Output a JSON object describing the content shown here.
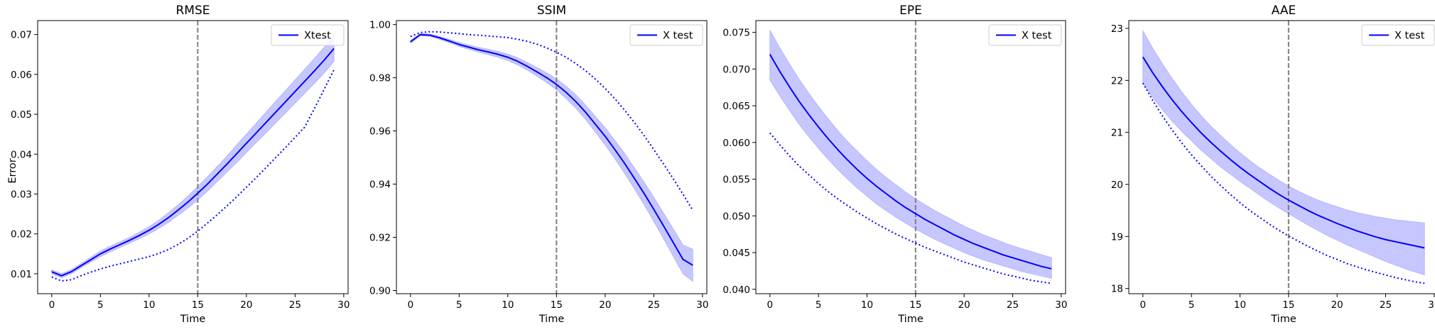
{
  "figure": {
    "ylabel": "Error"
  },
  "chart_data": [
    {
      "type": "line",
      "title": "RMSE",
      "xlabel": "Time",
      "ylabel": "Error",
      "xlim": [
        -1.45,
        30.45
      ],
      "ylim": [
        0.005,
        0.0735
      ],
      "xticks": [
        0,
        5,
        10,
        15,
        20,
        25,
        30
      ],
      "yticks": [
        0.01,
        0.02,
        0.03,
        0.04,
        0.05,
        0.06,
        0.07
      ],
      "tick_decimals": 2,
      "grid": false,
      "legend_position": "top-right",
      "legend_label": "Xtest",
      "vline_x": 15,
      "color": "#0000ff",
      "band_color": "#b4b4ff",
      "x": [
        0,
        1,
        2,
        3,
        4,
        5,
        6,
        7,
        8,
        9,
        10,
        11,
        12,
        13,
        14,
        15,
        16,
        17,
        18,
        19,
        20,
        21,
        22,
        23,
        24,
        25,
        26,
        27,
        28,
        29
      ],
      "series": [
        {
          "name": "Xtest",
          "style": "solid",
          "values": [
            0.0105,
            0.0095,
            0.0105,
            0.012,
            0.0135,
            0.015,
            0.0162,
            0.0173,
            0.0184,
            0.0196,
            0.0209,
            0.0224,
            0.0241,
            0.026,
            0.028,
            0.0302,
            0.0325,
            0.035,
            0.0375,
            0.0401,
            0.0427,
            0.0453,
            0.0479,
            0.0505,
            0.0531,
            0.0557,
            0.0583,
            0.0609,
            0.0636,
            0.0665
          ]
        },
        {
          "style": "dotted",
          "values": [
            0.0092,
            0.0082,
            0.0085,
            0.0095,
            0.0104,
            0.0112,
            0.0119,
            0.0125,
            0.0131,
            0.0137,
            0.0143,
            0.0151,
            0.0161,
            0.0174,
            0.0189,
            0.0207,
            0.0227,
            0.0248,
            0.027,
            0.0293,
            0.0317,
            0.0341,
            0.0366,
            0.0391,
            0.0416,
            0.0442,
            0.0468,
            0.0515,
            0.0563,
            0.0612
          ]
        }
      ],
      "band": {
        "lower": [
          0.01,
          0.009,
          0.01,
          0.0115,
          0.0129,
          0.0143,
          0.0155,
          0.0166,
          0.0177,
          0.0188,
          0.02,
          0.0214,
          0.0229,
          0.0247,
          0.0265,
          0.0285,
          0.0307,
          0.0331,
          0.0355,
          0.0379,
          0.0404,
          0.0429,
          0.0453,
          0.0478,
          0.0503,
          0.0528,
          0.0553,
          0.0578,
          0.0604,
          0.0633
        ],
        "upper": [
          0.011,
          0.01,
          0.011,
          0.0125,
          0.0141,
          0.0157,
          0.0169,
          0.018,
          0.0191,
          0.0204,
          0.0218,
          0.0234,
          0.0253,
          0.0273,
          0.0295,
          0.0319,
          0.0343,
          0.0369,
          0.0395,
          0.0423,
          0.045,
          0.0477,
          0.0505,
          0.0532,
          0.0559,
          0.0586,
          0.0613,
          0.064,
          0.0668,
          0.0698
        ]
      }
    },
    {
      "type": "line",
      "title": "SSIM",
      "xlabel": "Time",
      "xlim": [
        -1.45,
        30.45
      ],
      "ylim": [
        0.8988,
        1.0015
      ],
      "xticks": [
        0,
        5,
        10,
        15,
        20,
        25,
        30
      ],
      "yticks": [
        0.9,
        0.92,
        0.94,
        0.96,
        0.98,
        1.0
      ],
      "tick_decimals": 2,
      "grid": false,
      "legend_position": "top-right",
      "legend_label": "X test",
      "vline_x": 15,
      "color": "#0000ff",
      "band_color": "#b4b4ff",
      "x": [
        0,
        1,
        2,
        3,
        4,
        5,
        6,
        7,
        8,
        9,
        10,
        11,
        12,
        13,
        14,
        15,
        16,
        17,
        18,
        19,
        20,
        21,
        22,
        23,
        24,
        25,
        26,
        27,
        28,
        29
      ],
      "series": [
        {
          "name": "X test",
          "style": "solid",
          "values": [
            0.9935,
            0.9962,
            0.996,
            0.995,
            0.9938,
            0.9925,
            0.9915,
            0.9905,
            0.9897,
            0.9888,
            0.9877,
            0.9862,
            0.9843,
            0.9822,
            0.98,
            0.9775,
            0.9745,
            0.971,
            0.967,
            0.9625,
            0.958,
            0.953,
            0.9478,
            0.9422,
            0.9365,
            0.9305,
            0.9243,
            0.918,
            0.9117,
            0.9095
          ]
        },
        {
          "style": "dotted",
          "values": [
            0.9955,
            0.997,
            0.9973,
            0.9972,
            0.9969,
            0.9966,
            0.9962,
            0.996,
            0.9957,
            0.9954,
            0.9951,
            0.9945,
            0.9937,
            0.9926,
            0.9912,
            0.9896,
            0.9877,
            0.9853,
            0.9826,
            0.9795,
            0.976,
            0.9721,
            0.9678,
            0.9632,
            0.9583,
            0.953,
            0.9476,
            0.942,
            0.9362,
            0.9302
          ]
        }
      ],
      "band": {
        "lower": [
          0.993,
          0.9958,
          0.9956,
          0.9945,
          0.9932,
          0.9918,
          0.9907,
          0.9896,
          0.9887,
          0.9877,
          0.9865,
          0.9849,
          0.9829,
          0.9806,
          0.9782,
          0.9755,
          0.9722,
          0.9685,
          0.9643,
          0.9596,
          0.9548,
          0.9496,
          0.9441,
          0.9383,
          0.9323,
          0.926,
          0.9195,
          0.9129,
          0.9063,
          0.9035
        ],
        "upper": [
          0.994,
          0.9966,
          0.9964,
          0.9955,
          0.9944,
          0.9932,
          0.9923,
          0.9914,
          0.9907,
          0.9899,
          0.9889,
          0.9875,
          0.9857,
          0.9838,
          0.9818,
          0.9795,
          0.9768,
          0.9735,
          0.9697,
          0.9654,
          0.9612,
          0.9564,
          0.9515,
          0.9461,
          0.9407,
          0.935,
          0.9291,
          0.9231,
          0.9171,
          0.9155
        ]
      }
    },
    {
      "type": "line",
      "title": "EPE",
      "xlabel": "Time",
      "xlim": [
        -1.45,
        30.45
      ],
      "ylim": [
        0.0394,
        0.0766
      ],
      "xticks": [
        0,
        5,
        10,
        15,
        20,
        25,
        30
      ],
      "yticks": [
        0.04,
        0.045,
        0.05,
        0.055,
        0.06,
        0.065,
        0.07,
        0.075
      ],
      "tick_decimals": 3,
      "grid": false,
      "legend_position": "top-right",
      "legend_label": "X test",
      "vline_x": 15,
      "color": "#0000ff",
      "band_color": "#b4b4ff",
      "x": [
        0,
        1,
        2,
        3,
        4,
        5,
        6,
        7,
        8,
        9,
        10,
        11,
        12,
        13,
        14,
        15,
        16,
        17,
        18,
        19,
        20,
        21,
        22,
        23,
        24,
        25,
        26,
        27,
        28,
        29
      ],
      "series": [
        {
          "name": "X test",
          "style": "solid",
          "values": [
            0.072,
            0.0697,
            0.0676,
            0.0656,
            0.0638,
            0.0621,
            0.0605,
            0.059,
            0.0576,
            0.0563,
            0.0551,
            0.054,
            0.053,
            0.052,
            0.0511,
            0.0503,
            0.0495,
            0.0488,
            0.0481,
            0.0474,
            0.0468,
            0.0462,
            0.0457,
            0.0452,
            0.0447,
            0.0443,
            0.0439,
            0.0435,
            0.0431,
            0.0428
          ]
        },
        {
          "style": "dotted",
          "values": [
            0.0613,
            0.0597,
            0.0582,
            0.0568,
            0.0556,
            0.0544,
            0.0533,
            0.0523,
            0.0514,
            0.0505,
            0.0497,
            0.0489,
            0.0482,
            0.0475,
            0.0469,
            0.0463,
            0.0457,
            0.0452,
            0.0447,
            0.0442,
            0.0437,
            0.0433,
            0.0429,
            0.0425,
            0.0421,
            0.0418,
            0.0415,
            0.0412,
            0.041,
            0.0408
          ]
        }
      ],
      "band": {
        "lower": [
          0.0685,
          0.0664,
          0.0644,
          0.0625,
          0.0608,
          0.0592,
          0.0577,
          0.0563,
          0.055,
          0.0538,
          0.0527,
          0.0516,
          0.0507,
          0.0498,
          0.049,
          0.0482,
          0.0475,
          0.0468,
          0.0462,
          0.0456,
          0.045,
          0.0445,
          0.044,
          0.0436,
          0.0432,
          0.0428,
          0.0424,
          0.0421,
          0.0418,
          0.0415
        ],
        "upper": [
          0.0753,
          0.0729,
          0.0707,
          0.0686,
          0.0667,
          0.0649,
          0.0632,
          0.0616,
          0.0601,
          0.0588,
          0.0575,
          0.0563,
          0.0552,
          0.0542,
          0.0532,
          0.0523,
          0.0515,
          0.0507,
          0.05,
          0.0493,
          0.0486,
          0.048,
          0.0474,
          0.0469,
          0.0464,
          0.0459,
          0.0455,
          0.0451,
          0.0447,
          0.0443
        ]
      }
    },
    {
      "type": "line",
      "title": "AAE",
      "xlabel": "Time",
      "xlim": [
        -1.45,
        30.45
      ],
      "ylim": [
        17.9,
        23.15
      ],
      "xticks": [
        0,
        5,
        10,
        15,
        20,
        25,
        30
      ],
      "yticks": [
        18,
        19,
        20,
        21,
        22,
        23
      ],
      "tick_decimals": 0,
      "grid": false,
      "legend_position": "top-right",
      "legend_label": "X test",
      "vline_x": 15,
      "color": "#0000ff",
      "band_color": "#b4b4ff",
      "x": [
        0,
        1,
        2,
        3,
        4,
        5,
        6,
        7,
        8,
        9,
        10,
        11,
        12,
        13,
        14,
        15,
        16,
        17,
        18,
        19,
        20,
        21,
        22,
        23,
        24,
        25,
        26,
        27,
        28,
        29
      ],
      "series": [
        {
          "name": "X test",
          "style": "solid",
          "values": [
            22.45,
            22.15,
            21.88,
            21.63,
            21.4,
            21.19,
            20.99,
            20.81,
            20.64,
            20.48,
            20.33,
            20.19,
            20.06,
            19.93,
            19.81,
            19.7,
            19.6,
            19.5,
            19.41,
            19.33,
            19.25,
            19.18,
            19.11,
            19.05,
            18.99,
            18.94,
            18.9,
            18.86,
            18.82,
            18.78
          ]
        },
        {
          "style": "dotted",
          "values": [
            21.95,
            21.62,
            21.32,
            21.05,
            20.8,
            20.57,
            20.36,
            20.16,
            19.98,
            19.81,
            19.65,
            19.5,
            19.37,
            19.24,
            19.12,
            19.01,
            18.91,
            18.81,
            18.72,
            18.63,
            18.56,
            18.48,
            18.42,
            18.36,
            18.31,
            18.26,
            18.21,
            18.17,
            18.13,
            18.1
          ]
        }
      ],
      "band": {
        "lower": [
          21.95,
          21.68,
          21.44,
          21.22,
          21.02,
          20.84,
          20.66,
          20.5,
          20.34,
          20.2,
          20.06,
          19.93,
          19.8,
          19.67,
          19.55,
          19.44,
          19.33,
          19.22,
          19.12,
          19.02,
          18.93,
          18.84,
          18.76,
          18.68,
          18.6,
          18.52,
          18.45,
          18.38,
          18.32,
          18.26
        ],
        "upper": [
          22.95,
          22.62,
          22.32,
          22.04,
          21.78,
          21.54,
          21.32,
          21.12,
          20.94,
          20.77,
          20.61,
          20.46,
          20.32,
          20.2,
          20.08,
          19.97,
          19.87,
          19.78,
          19.7,
          19.63,
          19.57,
          19.51,
          19.46,
          19.42,
          19.38,
          19.35,
          19.32,
          19.3,
          19.28,
          19.26
        ]
      }
    }
  ]
}
